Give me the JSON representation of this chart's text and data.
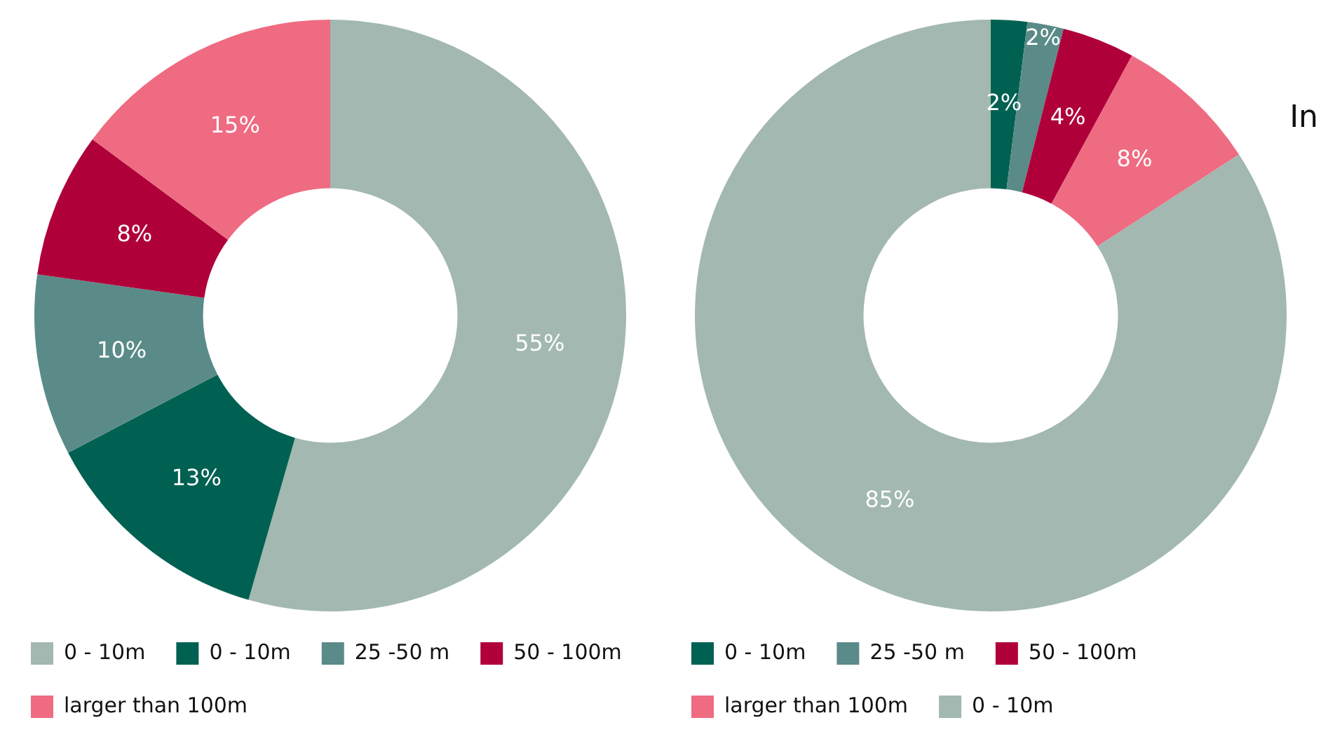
{
  "chart_data": [
    {
      "type": "donut",
      "categories": [
        "0 - 10m",
        "0 - 10m",
        "25 -50 m",
        "50 - 100m",
        "larger than 100m"
      ],
      "values": [
        55,
        13,
        10,
        8,
        15
      ],
      "colors": [
        "#a2b8b0",
        "#006152",
        "#5a8b88",
        "#b0003a",
        "#ee6b82"
      ],
      "value_labels": [
        "55%",
        "13%",
        "10%",
        "8%",
        "15%"
      ],
      "legend": "bottom left"
    },
    {
      "type": "donut",
      "categories": [
        "0 - 10m",
        "25 -50 m",
        "50 - 100m",
        "larger than 100m",
        "0 - 10m"
      ],
      "values": [
        2,
        2,
        4,
        8,
        85
      ],
      "colors": [
        "#006152",
        "#5a8b88",
        "#b0003a",
        "#ee6b82",
        "#a2b8b0"
      ],
      "value_labels": [
        "2%",
        "2%",
        "4%",
        "8%",
        "85%"
      ],
      "legend": "bottom left",
      "annotations": [
        "In"
      ]
    }
  ]
}
